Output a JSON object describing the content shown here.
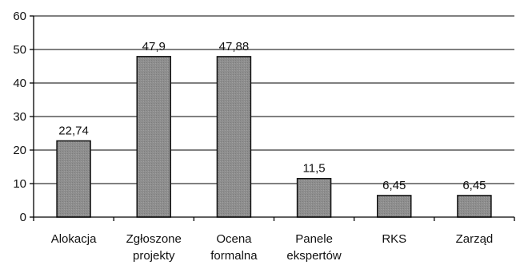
{
  "chart_data": {
    "type": "bar",
    "categories": [
      [
        "Alokacja"
      ],
      [
        "Zgłoszone",
        "projekty"
      ],
      [
        "Ocena",
        "formalna"
      ],
      [
        "Panele",
        "ekspertów"
      ],
      [
        "RKS"
      ],
      [
        "Zarząd"
      ]
    ],
    "values": [
      22.74,
      47.9,
      47.88,
      11.5,
      6.45,
      6.45
    ],
    "data_labels": [
      "22,74",
      "47,9",
      "47,88",
      "11,5",
      "6,45",
      "6,45"
    ],
    "ylim": [
      0,
      60
    ],
    "yticks": [
      0,
      10,
      20,
      30,
      40,
      50,
      60
    ],
    "ytick_labels": [
      "0",
      "10",
      "20",
      "30",
      "40",
      "50",
      "60"
    ],
    "grid": true,
    "legend": "none",
    "title": "",
    "xlabel": "",
    "ylabel": "",
    "colors": {
      "bar_fill": "#8c8c8c",
      "bar_stroke": "#111111",
      "grid": "#000000"
    }
  }
}
